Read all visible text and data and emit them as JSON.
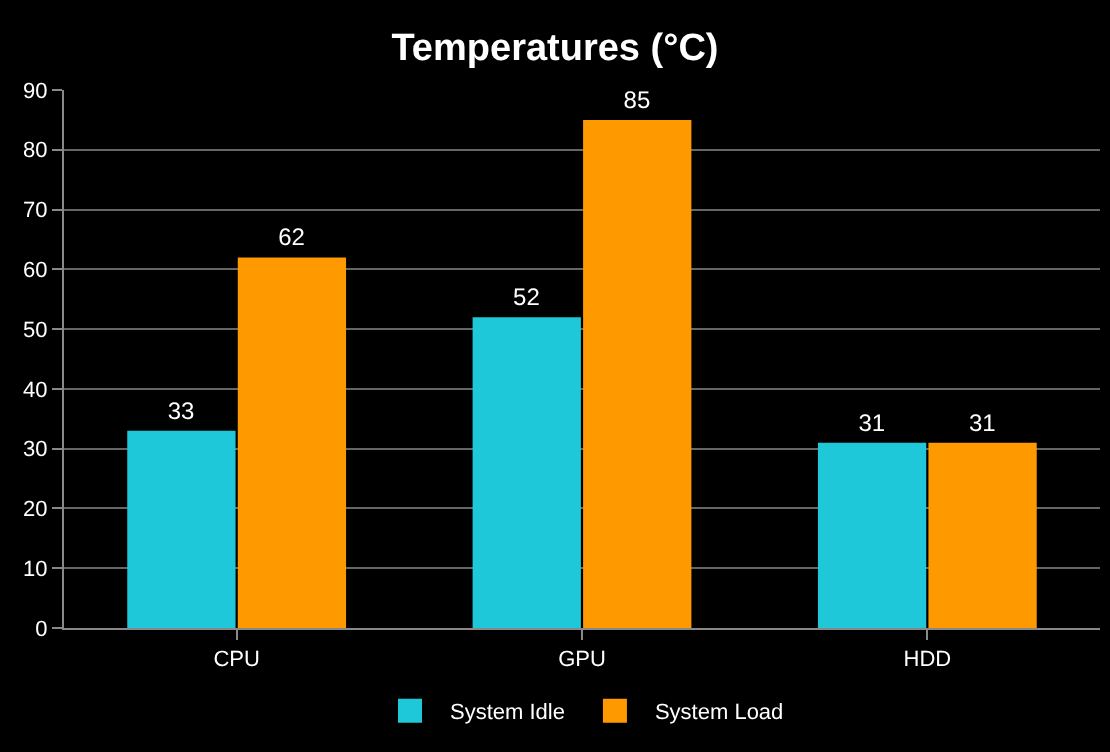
{
  "chart_data": {
    "type": "bar",
    "title": "Temperatures (°C)",
    "categories": [
      "CPU",
      "GPU",
      "HDD"
    ],
    "series": [
      {
        "name": "System Idle",
        "color": "#1fc8d8",
        "values": [
          33,
          52,
          31
        ]
      },
      {
        "name": "System Load",
        "color": "#ff9900",
        "values": [
          62,
          85,
          31
        ]
      }
    ],
    "ylim": [
      0,
      90
    ],
    "yticks": [
      0,
      10,
      20,
      30,
      40,
      50,
      60,
      70,
      80,
      90
    ],
    "grid": true,
    "legend": "bottom",
    "data_labels": true
  }
}
